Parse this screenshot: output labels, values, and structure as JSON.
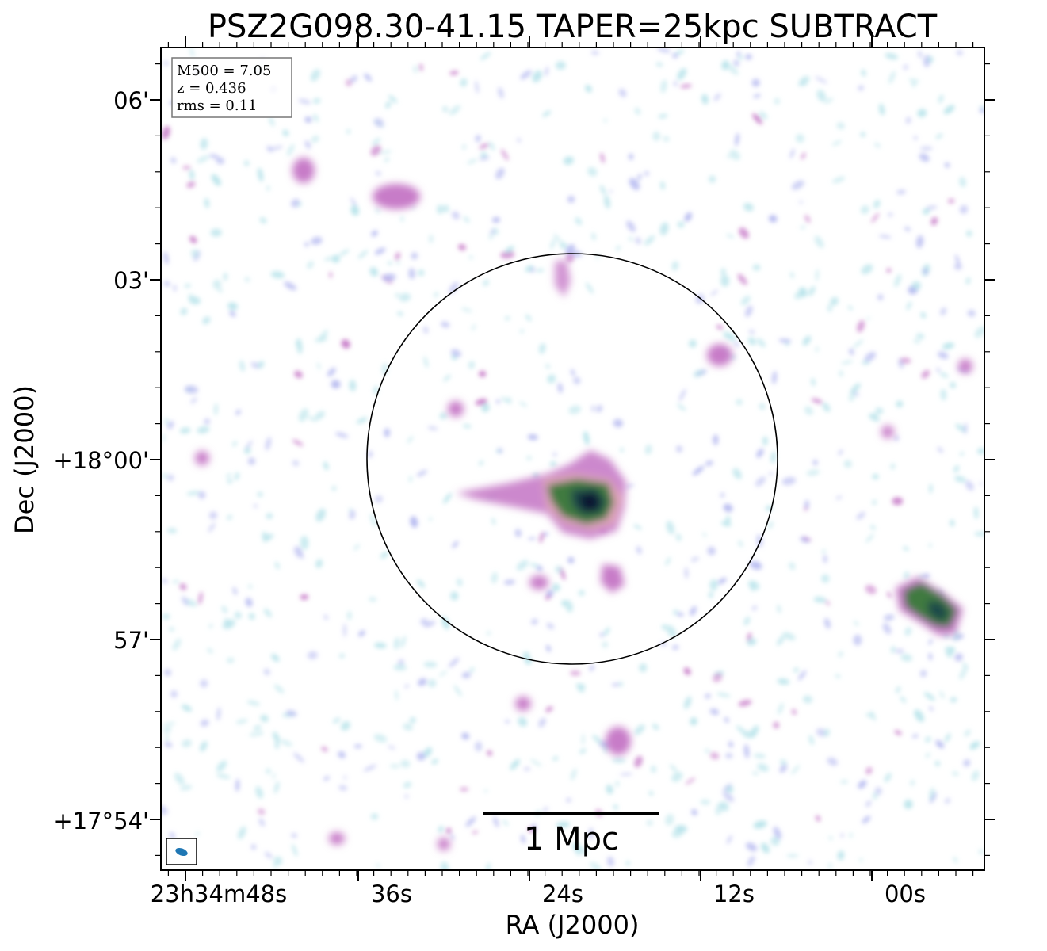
{
  "title": "PSZ2G098.30-41.15 TAPER=25kpc SUBTRACT",
  "xlabel": "RA (J2000)",
  "ylabel": "Dec (J2000)",
  "x_ticks": [
    "23h34m48s",
    "36s",
    "24s",
    "12s",
    "00s"
  ],
  "y_ticks": [
    "06'",
    "03'",
    "+18°00'",
    "57'",
    "+17°54'"
  ],
  "info_box": {
    "m500": "M500 = 7.05",
    "z": "z = 0.436",
    "rms": "rms = 0.11"
  },
  "scalebar_label": "1 Mpc",
  "colors": {
    "faint": "#b7e3ea",
    "low": "#b4b8f0",
    "mid": "#c77bc8",
    "high": "#4a7f3a",
    "peak": "#1a2a4a",
    "beam": "#1f77b4"
  },
  "sources": [
    {
      "name": "central-cluster-emission",
      "ra": "23h34m22s",
      "dec": "+17°59'"
    },
    {
      "name": "western-compact-source",
      "ra": "23h33m58s",
      "dec": "+17°58'"
    }
  ]
}
